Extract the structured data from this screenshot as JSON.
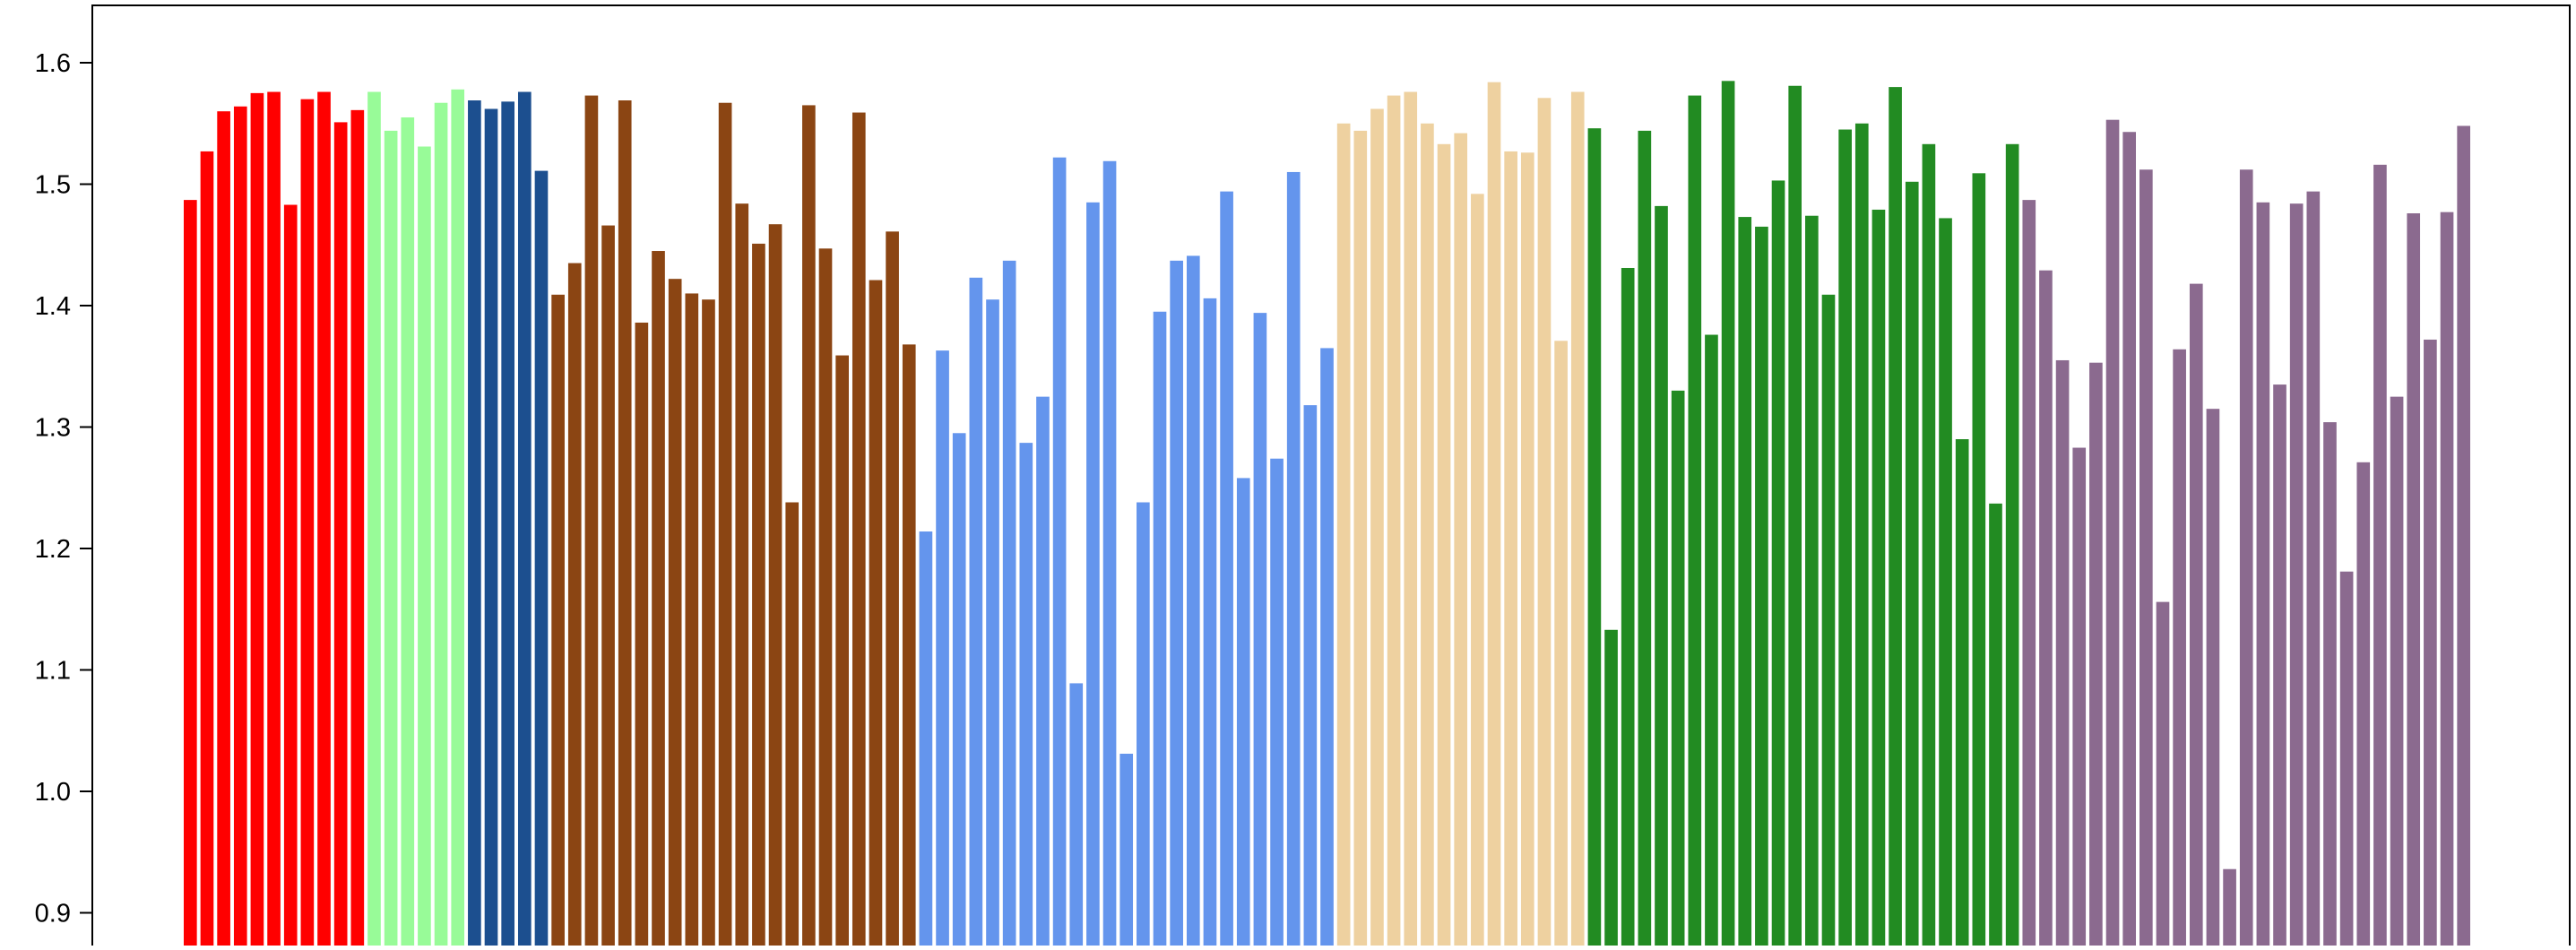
{
  "chart_data": {
    "type": "bar",
    "title": "",
    "xlabel": "",
    "ylabel": "",
    "ylim": [
      0.875,
      1.605
    ],
    "yticks": [
      0.9,
      1.0,
      1.1,
      1.2,
      1.3,
      1.4,
      1.5,
      1.6
    ],
    "ytick_labels": [
      "0.9",
      "1.0",
      "1.1",
      "1.2",
      "1.3",
      "1.4",
      "1.5",
      "1.6"
    ],
    "grid": false,
    "legend": "none",
    "groups": [
      {
        "color": "#ff0000",
        "values": [
          1.487,
          1.527,
          1.56,
          1.564,
          1.575,
          1.576,
          1.483,
          1.57,
          1.576,
          1.551,
          1.561
        ]
      },
      {
        "color": "#98fb98",
        "values": [
          1.576,
          1.544,
          1.555,
          1.531,
          1.567,
          1.578
        ]
      },
      {
        "color": "#1c4f8f",
        "values": [
          1.569,
          1.562,
          1.568,
          1.576,
          1.511
        ]
      },
      {
        "color": "#8b4513",
        "values": [
          1.409,
          1.435,
          1.573,
          1.466,
          1.569,
          1.386,
          1.445,
          1.422,
          1.41,
          1.405,
          1.567,
          1.484,
          1.451,
          1.467,
          1.238,
          1.565,
          1.447,
          1.359,
          1.559,
          1.421,
          1.461,
          1.368
        ]
      },
      {
        "color": "#6495ed",
        "values": [
          1.214,
          1.363,
          1.295,
          1.423,
          1.405,
          1.437,
          1.287,
          1.325,
          1.522,
          1.089,
          1.485,
          1.519,
          1.031,
          1.238,
          1.395,
          1.437,
          1.441,
          1.406,
          1.494,
          1.258,
          1.394,
          1.274,
          1.51,
          1.318,
          1.365
        ]
      },
      {
        "color": "#eed1a0",
        "values": [
          1.55,
          1.544,
          1.562,
          1.573,
          1.576,
          1.55,
          1.533,
          1.542,
          1.492,
          1.584,
          1.527,
          1.526,
          1.571,
          1.371,
          1.576
        ]
      },
      {
        "color": "#228b22",
        "values": [
          1.546,
          1.133,
          1.431,
          1.544,
          1.482,
          1.33,
          1.573,
          1.376,
          1.585,
          1.473,
          1.465,
          1.503,
          1.581,
          1.474,
          1.409,
          1.545,
          1.55,
          1.479,
          1.58,
          1.502,
          1.533,
          1.472,
          1.29,
          1.509,
          1.237,
          1.533
        ]
      },
      {
        "color": "#8b6a8f",
        "values": [
          1.487,
          1.429,
          1.355,
          1.283,
          1.353,
          1.553,
          1.543,
          1.512,
          1.156,
          1.364,
          1.418,
          1.315,
          0.936,
          1.512,
          1.485,
          1.335,
          1.484,
          1.494,
          1.304,
          1.181,
          1.271,
          1.516,
          1.325,
          1.476,
          1.372,
          1.477,
          1.548
        ]
      }
    ]
  }
}
